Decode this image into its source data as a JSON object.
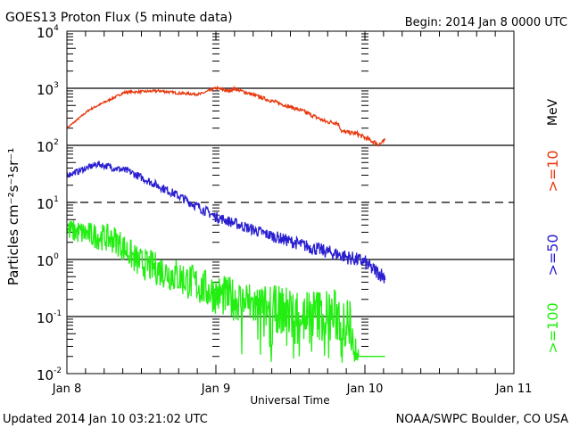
{
  "chart_data": {
    "type": "line",
    "title": "GOES13 Proton Flux (5 minute data)",
    "begin_label": "Begin: 2014 Jan 8 0000 UTC",
    "xlabel": "Universal Time",
    "ylabel": "Particles cm⁻²s⁻¹sr⁻¹",
    "x_unit": "hours since 2014 Jan 8 00:00 UTC",
    "xlim": [
      0,
      72
    ],
    "x_ticks": [
      {
        "value": 0,
        "label": "Jan 8"
      },
      {
        "value": 24,
        "label": "Jan 9"
      },
      {
        "value": 48,
        "label": "Jan 10"
      },
      {
        "value": 72,
        "label": "Jan 11"
      }
    ],
    "yscale": "log",
    "ylim": [
      0.01,
      10000
    ],
    "y_ticks": [
      {
        "value": 10000,
        "base": "10",
        "exp": "4"
      },
      {
        "value": 1000,
        "base": "10",
        "exp": "3"
      },
      {
        "value": 100,
        "base": "10",
        "exp": "2"
      },
      {
        "value": 10,
        "base": "10",
        "exp": "1"
      },
      {
        "value": 1,
        "base": "10",
        "exp": "0"
      },
      {
        "value": 0.1,
        "base": "10",
        "exp": "-1"
      },
      {
        "value": 0.01,
        "base": "10",
        "exp": "-2"
      }
    ],
    "hlines": [
      {
        "value": 1000,
        "style": "solid"
      },
      {
        "value": 100,
        "style": "solid"
      },
      {
        "value": 10,
        "style": "dashed"
      },
      {
        "value": 1,
        "style": "solid"
      },
      {
        "value": 0.1,
        "style": "solid"
      }
    ],
    "unit_label": "MeV",
    "series": [
      {
        "name": ">=10",
        "color": "#e8380d",
        "noise": 0.015,
        "x": [
          0,
          3.6,
          9.3,
          15,
          18,
          20,
          21.5,
          24,
          26,
          27,
          32,
          38,
          41.7,
          43.4,
          43.8,
          44.3,
          46.7,
          49,
          50.3,
          51.3
        ],
        "y": [
          200,
          420,
          850,
          900,
          820,
          800,
          790,
          1000,
          900,
          980,
          650,
          400,
          260,
          250,
          230,
          175,
          160,
          120,
          105,
          120
        ]
      },
      {
        "name": ">=50",
        "color": "#2a1fd0",
        "noise": 0.05,
        "x": [
          0,
          5,
          10,
          18,
          24,
          32,
          39.5,
          44,
          48,
          49,
          51.3
        ],
        "y": [
          30,
          47,
          35,
          13,
          5.6,
          2.8,
          1.6,
          1.2,
          0.9,
          0.7,
          0.5
        ]
      },
      {
        "name": ">=100",
        "color": "#22ee11",
        "noise": 0.2,
        "x": [
          0,
          7.9,
          11.5,
          18,
          24,
          32,
          40,
          44,
          46.5,
          47,
          51.3
        ],
        "y": [
          3.3,
          2.2,
          0.9,
          0.5,
          0.25,
          0.14,
          0.11,
          0.1,
          0.05,
          0.02,
          0.02
        ]
      }
    ]
  },
  "footer": {
    "updated": "Updated 2014 Jan 10 03:21:02 UTC",
    "credit": "NOAA/SWPC Boulder, CO USA"
  }
}
